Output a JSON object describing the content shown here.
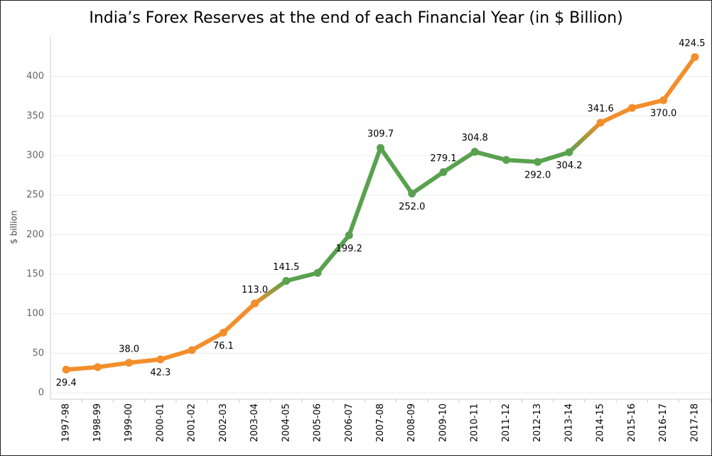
{
  "chart_data": {
    "type": "line",
    "title": "India’s Forex Reserves at the end of each Financial Year (in $ Billion)",
    "y_label": "$ billion",
    "categories": [
      "1997-98",
      "1998-99",
      "1999-00",
      "2000-01",
      "2001-02",
      "2002-03",
      "2003-04",
      "2004-05",
      "2005-06",
      "2006-07",
      "2007-08",
      "2008-09",
      "2009-10",
      "2010-11",
      "2011-12",
      "2012-13",
      "2013-14",
      "2014-15",
      "2015-16",
      "2016-17",
      "2017-18"
    ],
    "values": [
      29.4,
      32.5,
      38.0,
      42.3,
      54.1,
      76.1,
      113.0,
      141.5,
      151.6,
      199.2,
      309.7,
      252.0,
      279.1,
      304.8,
      294.4,
      292.0,
      304.2,
      341.6,
      360.2,
      370.0,
      424.5
    ],
    "value_labels": [
      "29.4",
      null,
      "38.0",
      "42.3",
      null,
      "76.1",
      "113.0",
      "141.5",
      null,
      "199.2",
      "309.7",
      "252.0",
      "279.1",
      "304.8",
      null,
      "292.0",
      "304.2",
      "341.6",
      null,
      "370.0",
      "424.5"
    ],
    "colors": [
      "#f28e2b",
      "#f28e2b",
      "#f28e2b",
      "#f28e2b",
      "#f28e2b",
      "#f28e2b",
      "#f28e2b",
      "#59a14f",
      "#59a14f",
      "#59a14f",
      "#59a14f",
      "#59a14f",
      "#59a14f",
      "#59a14f",
      "#59a14f",
      "#59a14f",
      "#59a14f",
      "#f28e2b",
      "#f28e2b",
      "#f28e2b",
      "#f28e2b"
    ],
    "ylim": [
      -8,
      450
    ],
    "yticks": [
      0,
      50,
      100,
      150,
      200,
      250,
      300,
      350,
      400
    ],
    "grid": true
  }
}
